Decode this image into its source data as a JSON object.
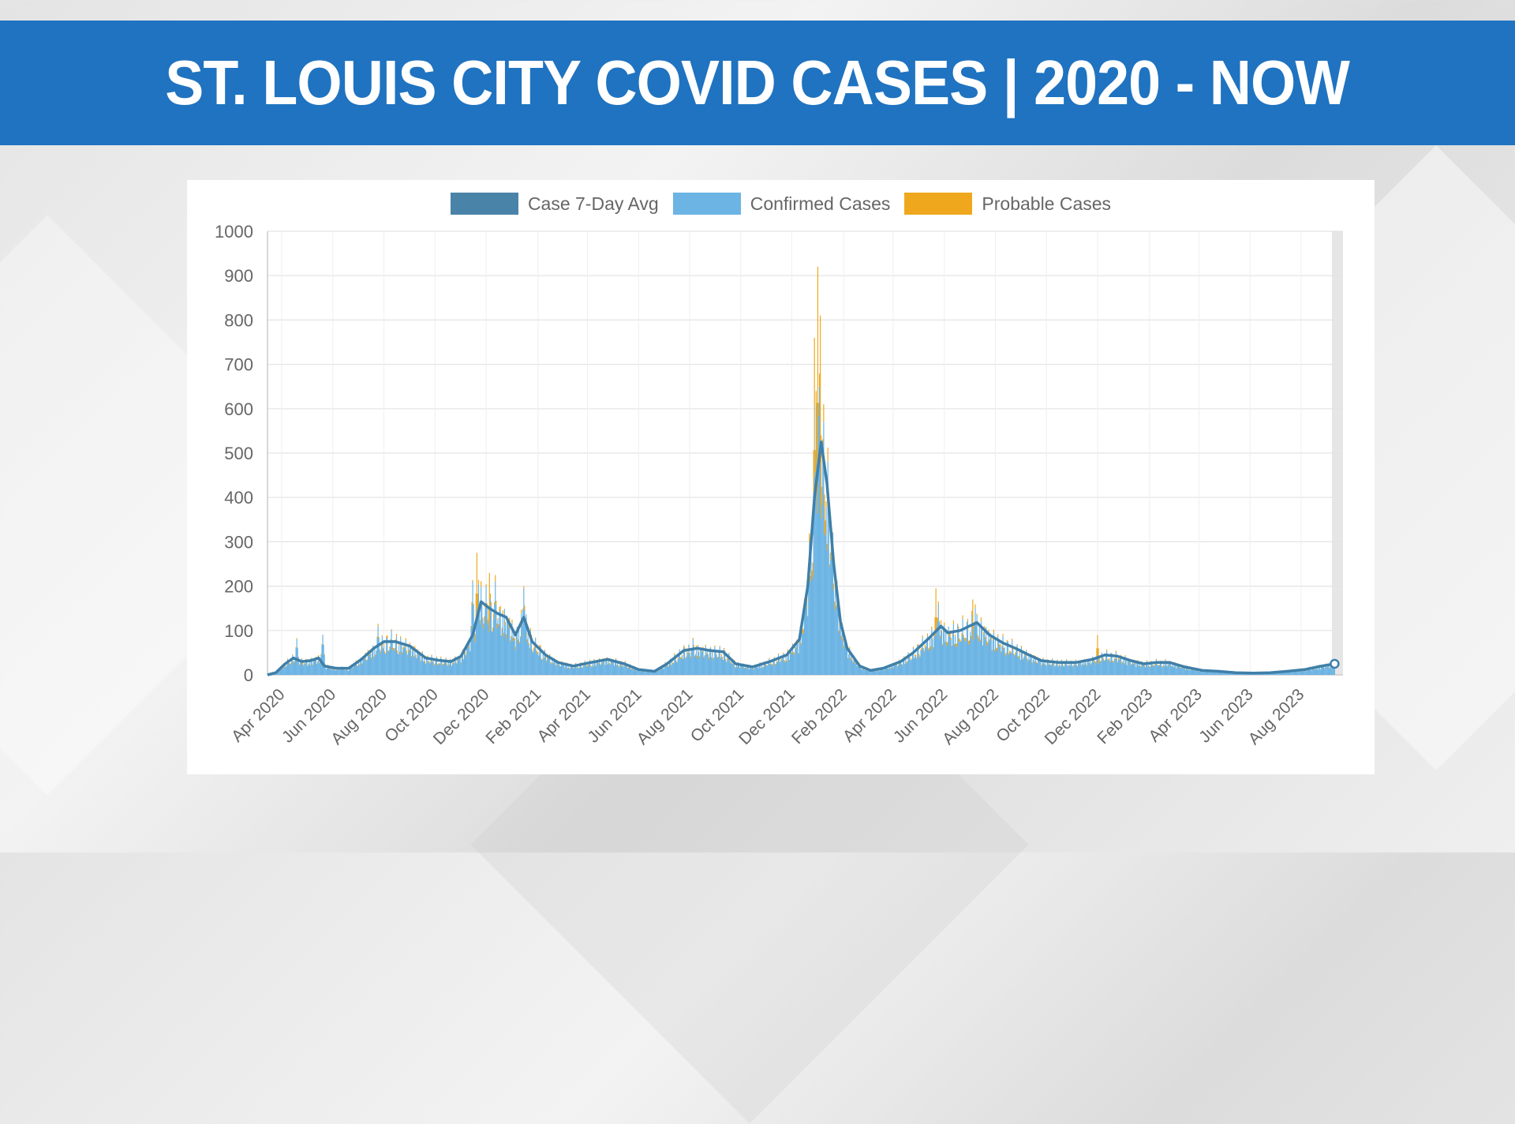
{
  "banner": {
    "title": "ST. LOUIS CITY COVID CASES | 2020 - NOW"
  },
  "colors": {
    "banner": "#1f73c0",
    "avg_line": "#3f7fa8",
    "confirmed": "#6cb4e4",
    "probable": "#efa81e"
  },
  "legend": {
    "items": [
      {
        "label": "Case 7-Day Avg",
        "color": "#4a83a8"
      },
      {
        "label": "Confirmed Cases",
        "color": "#6cb4e4"
      },
      {
        "label": "Probable Cases",
        "color": "#efa81e"
      }
    ]
  },
  "chart_data": {
    "type": "bar",
    "title": "",
    "xlabel": "",
    "ylabel": "",
    "ylim": [
      0,
      1000
    ],
    "yticks": [
      0,
      100,
      200,
      300,
      400,
      500,
      600,
      700,
      800,
      900,
      1000
    ],
    "xlim": [
      "2020-03-15",
      "2023-09-20"
    ],
    "xticks": [
      "Apr 2020",
      "Jun 2020",
      "Aug 2020",
      "Oct 2020",
      "Dec 2020",
      "Feb 2021",
      "Apr 2021",
      "Jun 2021",
      "Aug 2021",
      "Oct 2021",
      "Dec 2021",
      "Feb 2022",
      "Apr 2022",
      "Jun 2022",
      "Aug 2022",
      "Oct 2022",
      "Dec 2022",
      "Feb 2023",
      "Apr 2023",
      "Jun 2023",
      "Aug 2023"
    ],
    "grid": true,
    "legend_position": "top-center",
    "series": [
      {
        "name": "Case 7-Day Avg",
        "type": "line",
        "points": [
          [
            "2020-03-15",
            0
          ],
          [
            "2020-03-25",
            5
          ],
          [
            "2020-04-05",
            25
          ],
          [
            "2020-04-15",
            38
          ],
          [
            "2020-04-25",
            30
          ],
          [
            "2020-05-05",
            32
          ],
          [
            "2020-05-15",
            38
          ],
          [
            "2020-05-22",
            20
          ],
          [
            "2020-06-05",
            15
          ],
          [
            "2020-06-20",
            15
          ],
          [
            "2020-07-05",
            35
          ],
          [
            "2020-07-20",
            60
          ],
          [
            "2020-08-01",
            75
          ],
          [
            "2020-08-15",
            75
          ],
          [
            "2020-09-01",
            65
          ],
          [
            "2020-09-20",
            38
          ],
          [
            "2020-10-05",
            33
          ],
          [
            "2020-10-20",
            30
          ],
          [
            "2020-11-01",
            42
          ],
          [
            "2020-11-15",
            90
          ],
          [
            "2020-11-25",
            165
          ],
          [
            "2020-12-05",
            150
          ],
          [
            "2020-12-15",
            138
          ],
          [
            "2020-12-25",
            130
          ],
          [
            "2021-01-05",
            90
          ],
          [
            "2021-01-15",
            130
          ],
          [
            "2021-01-25",
            75
          ],
          [
            "2021-02-10",
            45
          ],
          [
            "2021-02-25",
            28
          ],
          [
            "2021-03-15",
            20
          ],
          [
            "2021-04-05",
            28
          ],
          [
            "2021-04-25",
            35
          ],
          [
            "2021-05-15",
            25
          ],
          [
            "2021-06-01",
            12
          ],
          [
            "2021-06-20",
            8
          ],
          [
            "2021-07-05",
            25
          ],
          [
            "2021-07-25",
            55
          ],
          [
            "2021-08-10",
            60
          ],
          [
            "2021-08-25",
            55
          ],
          [
            "2021-09-10",
            52
          ],
          [
            "2021-09-25",
            25
          ],
          [
            "2021-10-15",
            18
          ],
          [
            "2021-11-05",
            30
          ],
          [
            "2021-11-25",
            45
          ],
          [
            "2021-12-10",
            80
          ],
          [
            "2021-12-20",
            200
          ],
          [
            "2021-12-28",
            400
          ],
          [
            "2022-01-05",
            525
          ],
          [
            "2022-01-12",
            430
          ],
          [
            "2022-01-20",
            250
          ],
          [
            "2022-01-28",
            120
          ],
          [
            "2022-02-05",
            60
          ],
          [
            "2022-02-20",
            20
          ],
          [
            "2022-03-05",
            10
          ],
          [
            "2022-03-20",
            15
          ],
          [
            "2022-04-10",
            30
          ],
          [
            "2022-04-25",
            50
          ],
          [
            "2022-05-15",
            85
          ],
          [
            "2022-05-28",
            110
          ],
          [
            "2022-06-05",
            95
          ],
          [
            "2022-06-20",
            100
          ],
          [
            "2022-07-01",
            110
          ],
          [
            "2022-07-10",
            118
          ],
          [
            "2022-07-25",
            90
          ],
          [
            "2022-08-10",
            72
          ],
          [
            "2022-08-25",
            60
          ],
          [
            "2022-09-10",
            45
          ],
          [
            "2022-09-25",
            32
          ],
          [
            "2022-10-15",
            28
          ],
          [
            "2022-11-05",
            28
          ],
          [
            "2022-11-25",
            35
          ],
          [
            "2022-12-10",
            45
          ],
          [
            "2022-12-25",
            42
          ],
          [
            "2023-01-10",
            32
          ],
          [
            "2023-01-25",
            25
          ],
          [
            "2023-02-10",
            28
          ],
          [
            "2023-02-25",
            28
          ],
          [
            "2023-03-15",
            18
          ],
          [
            "2023-04-05",
            10
          ],
          [
            "2023-04-25",
            8
          ],
          [
            "2023-05-15",
            5
          ],
          [
            "2023-06-05",
            4
          ],
          [
            "2023-06-25",
            5
          ],
          [
            "2023-07-15",
            8
          ],
          [
            "2023-08-05",
            12
          ],
          [
            "2023-08-20",
            18
          ],
          [
            "2023-09-01",
            22
          ],
          [
            "2023-09-10",
            25
          ]
        ]
      },
      {
        "name": "Confirmed Cases",
        "type": "bar",
        "points": [
          [
            "2020-04-19",
            80
          ],
          [
            "2020-05-20",
            90
          ],
          [
            "2020-07-25",
            110
          ],
          [
            "2020-08-10",
            100
          ],
          [
            "2020-11-15",
            210
          ],
          [
            "2020-11-22",
            205
          ],
          [
            "2020-12-01",
            200
          ],
          [
            "2020-12-12",
            210
          ],
          [
            "2021-01-15",
            195
          ],
          [
            "2021-08-05",
            80
          ],
          [
            "2021-12-30",
            610
          ],
          [
            "2022-01-03",
            650
          ],
          [
            "2022-01-07",
            470
          ],
          [
            "2022-05-25",
            160
          ],
          [
            "2022-07-08",
            150
          ]
        ]
      },
      {
        "name": "Probable Cases",
        "type": "bar",
        "points": [
          [
            "2020-11-20",
            275
          ],
          [
            "2020-12-05",
            230
          ],
          [
            "2020-12-12",
            225
          ],
          [
            "2021-01-15",
            200
          ],
          [
            "2021-12-28",
            760
          ],
          [
            "2022-01-01",
            920
          ],
          [
            "2022-01-04",
            810
          ],
          [
            "2022-01-08",
            610
          ],
          [
            "2022-05-22",
            195
          ],
          [
            "2022-07-05",
            170
          ],
          [
            "2022-12-01",
            90
          ]
        ]
      }
    ]
  }
}
